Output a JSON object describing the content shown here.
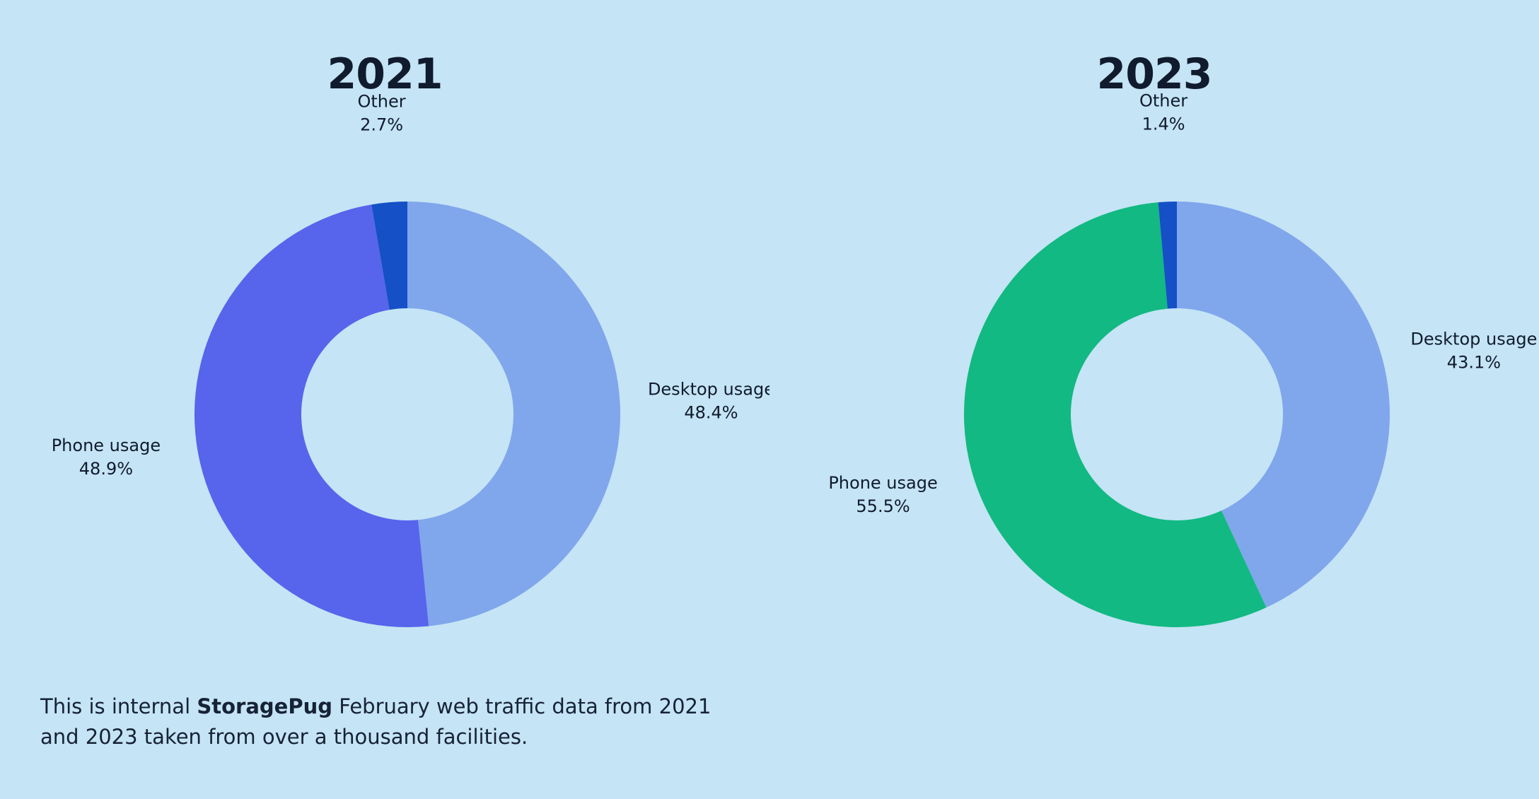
{
  "chart_data": [
    {
      "type": "pie",
      "title": "2021",
      "donut": true,
      "slices": [
        {
          "label": "Desktop usage",
          "value": 48.4,
          "display": "48.4%",
          "color": "#80a6ec"
        },
        {
          "label": "Phone usage",
          "value": 48.9,
          "display": "48.9%",
          "color": "#5665eb"
        },
        {
          "label": "Other",
          "value": 2.7,
          "display": "2.7%",
          "color": "#1550c6"
        }
      ]
    },
    {
      "type": "pie",
      "title": "2023",
      "donut": true,
      "slices": [
        {
          "label": "Desktop usage",
          "value": 43.1,
          "display": "43.1%",
          "color": "#80a6ec"
        },
        {
          "label": "Phone usage",
          "value": 55.5,
          "display": "55.5%",
          "color": "#12b982"
        },
        {
          "label": "Other",
          "value": 1.4,
          "display": "1.4%",
          "color": "#1550c6"
        }
      ]
    }
  ],
  "footnote": {
    "before": "This is internal ",
    "brand": "StoragePug",
    "after": " February web traffic data from 2021 and 2023 taken from over a thousand facilities."
  },
  "colors": {
    "background": "#c5e4f5",
    "text": "#0f1b2d"
  }
}
